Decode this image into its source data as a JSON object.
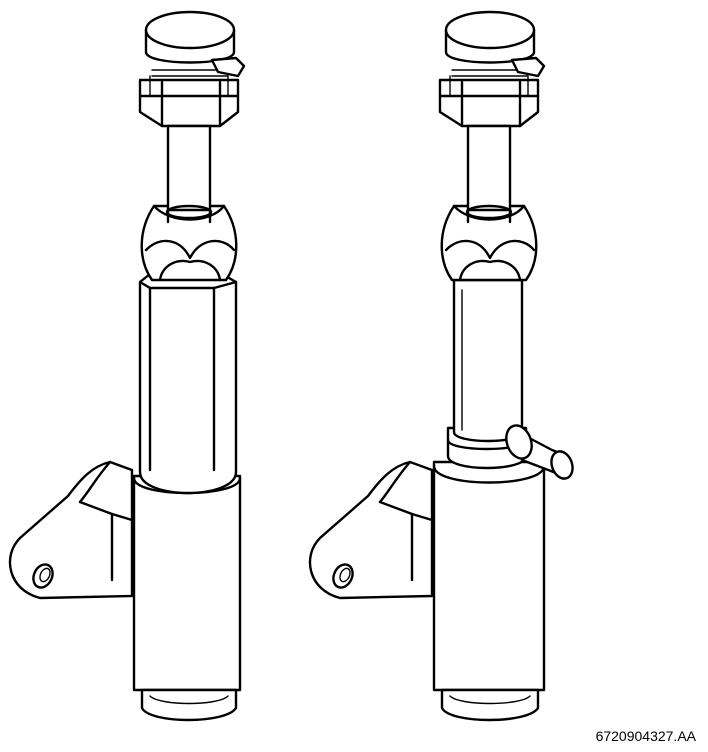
{
  "figure_code": "6720904327.AA"
}
